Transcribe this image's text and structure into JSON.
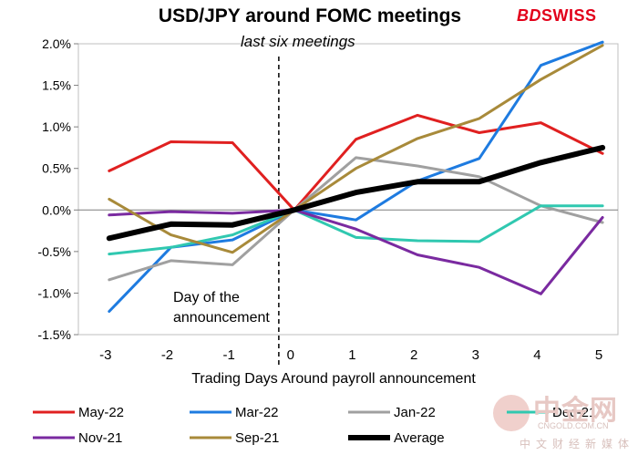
{
  "title": "USD/JPY around FOMC meetings",
  "subtitle": "last six meetings",
  "brand": {
    "bd": "BD",
    "swiss": "SWISS",
    "color": "#e2001a"
  },
  "watermark": {
    "cn": "中金网",
    "en": "CNGOLD.COM.CN",
    "cn2": "中文财经新媒体"
  },
  "annotation": [
    "Day of the",
    "announcement"
  ],
  "chart_data": {
    "type": "line",
    "title": "USD/JPY around FOMC meetings",
    "subtitle": "last six meetings",
    "xlabel": "Trading Days Around payroll announcement",
    "ylabel": "",
    "x": [
      -3,
      -2,
      -1,
      0,
      1,
      2,
      3,
      4,
      5
    ],
    "x_tick_labels": [
      "-3",
      "-2",
      "-1",
      "0",
      "1",
      "2",
      "3",
      "4",
      "5"
    ],
    "ylim": [
      -1.5,
      2.0
    ],
    "y_ticks": [
      -1.5,
      -1.0,
      -0.5,
      0.0,
      0.5,
      1.0,
      1.5,
      2.0
    ],
    "y_tick_labels": [
      "-1.5%",
      "-1.0%",
      "-0.5%",
      "0.0%",
      "0.5%",
      "1.0%",
      "1.5%",
      "2.0%"
    ],
    "grid": false,
    "legend_position": "bottom",
    "vertical_marker_x": -0.25,
    "series": [
      {
        "name": "May-22",
        "color": "#e02020",
        "width": 3,
        "values": [
          0.47,
          0.82,
          0.81,
          0.0,
          0.85,
          1.14,
          0.93,
          1.05,
          0.68
        ]
      },
      {
        "name": "Mar-22",
        "color": "#1e7be0",
        "width": 3,
        "values": [
          -1.22,
          -0.45,
          -0.36,
          0.0,
          -0.12,
          0.35,
          0.62,
          1.74,
          2.02
        ]
      },
      {
        "name": "Jan-22",
        "color": "#a0a0a0",
        "width": 3,
        "values": [
          -0.84,
          -0.61,
          -0.66,
          0.0,
          0.63,
          0.53,
          0.4,
          0.05,
          -0.15
        ]
      },
      {
        "name": "Dec-21",
        "color": "#30c8b0",
        "width": 3,
        "values": [
          -0.53,
          -0.45,
          -0.3,
          0.0,
          -0.33,
          -0.37,
          -0.38,
          0.05,
          0.05
        ]
      },
      {
        "name": "Nov-21",
        "color": "#7a2aa0",
        "width": 3,
        "values": [
          -0.06,
          -0.02,
          -0.04,
          0.0,
          -0.23,
          -0.54,
          -0.69,
          -1.01,
          -0.09
        ]
      },
      {
        "name": "Sep-21",
        "color": "#a88a3a",
        "width": 3,
        "values": [
          0.13,
          -0.3,
          -0.51,
          0.0,
          0.5,
          0.86,
          1.1,
          1.57,
          1.98
        ]
      },
      {
        "name": "Average",
        "color": "#000000",
        "width": 6,
        "values": [
          -0.34,
          -0.17,
          -0.18,
          0.0,
          0.21,
          0.34,
          0.34,
          0.57,
          0.75
        ]
      }
    ]
  }
}
